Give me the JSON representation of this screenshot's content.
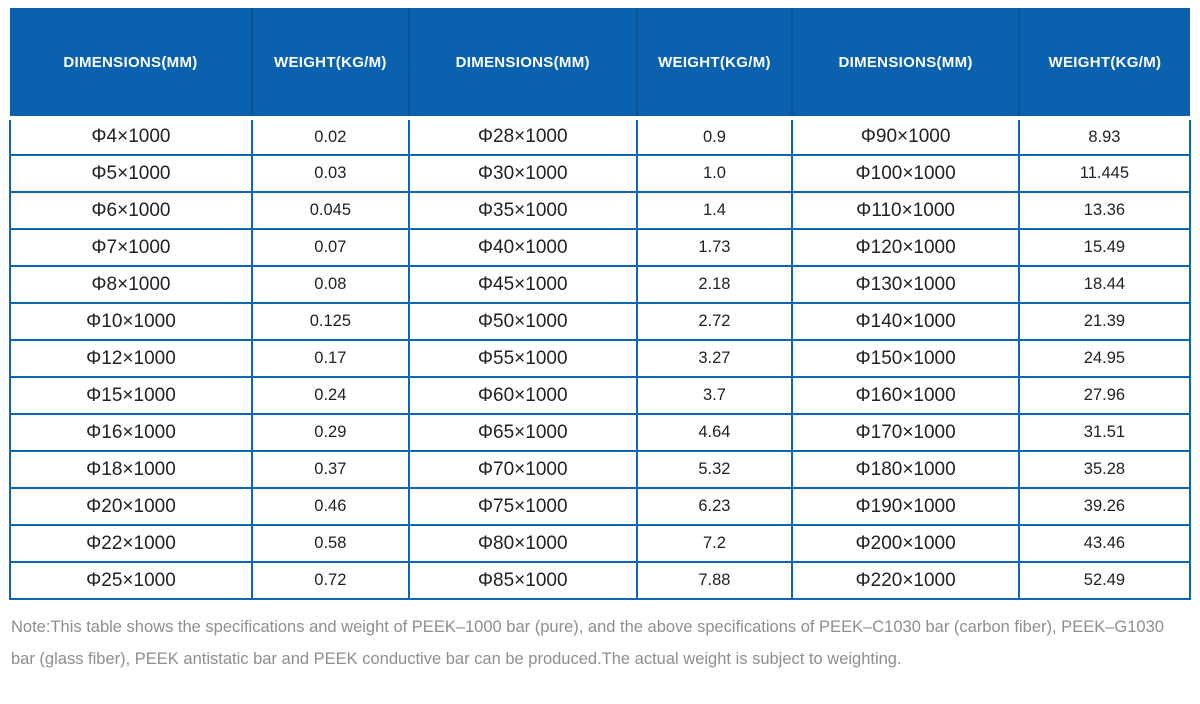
{
  "colors": {
    "header_bg": "#0a61ad",
    "header_separator": "#0a5495",
    "border": "#0e65b5",
    "cell_text": "#222222",
    "note_text": "#8e8e8e"
  },
  "chart_data": {
    "type": "table",
    "columns": [
      "DIMENSIONS(MM)",
      "WEIGHT(KG/M)",
      "DIMENSIONS(MM)",
      "WEIGHT(KG/M)",
      "DIMENSIONS(MM)",
      "WEIGHT(KG/M)"
    ],
    "rows": [
      [
        "Φ4×1000",
        "0.02",
        "Φ28×1000",
        "0.9",
        "Φ90×1000",
        "8.93"
      ],
      [
        "Φ5×1000",
        "0.03",
        "Φ30×1000",
        "1.0",
        "Φ100×1000",
        "11.445"
      ],
      [
        "Φ6×1000",
        "0.045",
        "Φ35×1000",
        "1.4",
        "Φ110×1000",
        "13.36"
      ],
      [
        "Φ7×1000",
        "0.07",
        "Φ40×1000",
        "1.73",
        "Φ120×1000",
        "15.49"
      ],
      [
        "Φ8×1000",
        "0.08",
        "Φ45×1000",
        "2.18",
        "Φ130×1000",
        "18.44"
      ],
      [
        "Φ10×1000",
        "0.125",
        "Φ50×1000",
        "2.72",
        "Φ140×1000",
        "21.39"
      ],
      [
        "Φ12×1000",
        "0.17",
        "Φ55×1000",
        "3.27",
        "Φ150×1000",
        "24.95"
      ],
      [
        "Φ15×1000",
        "0.24",
        "Φ60×1000",
        "3.7",
        "Φ160×1000",
        "27.96"
      ],
      [
        "Φ16×1000",
        "0.29",
        "Φ65×1000",
        "4.64",
        "Φ170×1000",
        "31.51"
      ],
      [
        "Φ18×1000",
        "0.37",
        "Φ70×1000",
        "5.32",
        "Φ180×1000",
        "35.28"
      ],
      [
        "Φ20×1000",
        "0.46",
        "Φ75×1000",
        "6.23",
        "Φ190×1000",
        "39.26"
      ],
      [
        "Φ22×1000",
        "0.58",
        "Φ80×1000",
        "7.2",
        "Φ200×1000",
        "43.46"
      ],
      [
        "Φ25×1000",
        "0.72",
        "Φ85×1000",
        "7.88",
        "Φ220×1000",
        "52.49"
      ]
    ]
  },
  "note": {
    "text": "Note:This table shows the specifications and weight of PEEK–1000 bar (pure), and the above specifications of PEEK–C1030 bar (carbon fiber), PEEK–G1030 bar (glass fiber), PEEK antistatic bar and PEEK conductive bar can be produced.The actual weight is subject to weighting."
  }
}
